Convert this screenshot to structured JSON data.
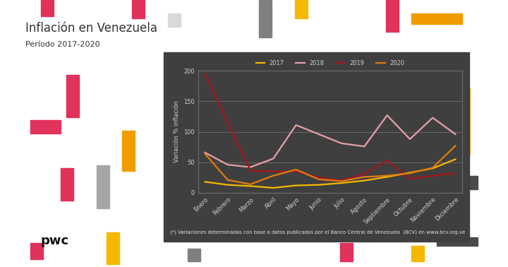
{
  "chart_data": {
    "type": "line",
    "title": "Inflación en Venezuela",
    "subtitle": "Período 2017-2020",
    "y_label": "Variación % inflación",
    "footnote": "(*) Variaciones determinadas con base a datos publicados por el Banco Central de Venezuela  (BCV) en www.bcv.org.ve",
    "logo": "pwc",
    "categories": [
      "Enero",
      "Febrero",
      "Marzo",
      "Abril",
      "Mayo",
      "Junio",
      "Julio",
      "Agosto",
      "Septiembre",
      "Octubre",
      "Noviembre",
      "Diciembre"
    ],
    "series": [
      {
        "name": "2017",
        "color": "#f5b800",
        "values": [
          18,
          13,
          11,
          8,
          12,
          13,
          16,
          20,
          26,
          33,
          40,
          55
        ]
      },
      {
        "name": "2018",
        "color": "#e8a0a8",
        "values": [
          66,
          46,
          42,
          56,
          111,
          96,
          81,
          76,
          127,
          88,
          123,
          96
        ]
      },
      {
        "name": "2019",
        "color": "#a3161d",
        "values": [
          196,
          115,
          36,
          35,
          35,
          25,
          20,
          31,
          53,
          23,
          28,
          32
        ]
      },
      {
        "name": "2020",
        "color": "#e57b0e",
        "values": [
          64,
          21,
          14,
          28,
          38,
          22,
          19,
          26,
          28,
          32,
          41,
          77
        ]
      }
    ],
    "ylim": [
      0,
      200
    ],
    "yticks": [
      0,
      50,
      100,
      150,
      200
    ],
    "grid": true,
    "legend": "upper center"
  }
}
